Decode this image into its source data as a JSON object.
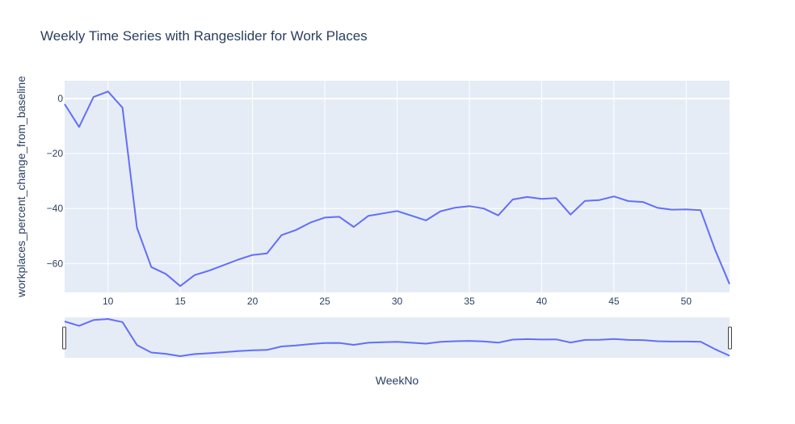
{
  "chart_data": {
    "type": "line",
    "title": "Weekly Time Series with Rangeslider for Work Places",
    "xlabel": "WeekNo",
    "ylabel": "workplaces_percent_change_from_baseline",
    "xlim": [
      7,
      53
    ],
    "ylim": [
      -70.5,
      6.5
    ],
    "x_ticks": [
      10,
      15,
      20,
      25,
      30,
      35,
      40,
      45,
      50
    ],
    "y_ticks": [
      0,
      -20,
      -40,
      -60
    ],
    "grid": true,
    "legend": "none",
    "rangeslider": true,
    "colors": {
      "line": "#636efa",
      "plot_bg": "#e5ecf6",
      "grid": "#ffffff",
      "text": "#2a3f5f"
    },
    "series": [
      {
        "x": [
          7,
          8,
          9,
          10,
          11,
          12,
          13,
          14,
          15,
          16,
          17,
          18,
          19,
          20,
          21,
          22,
          23,
          24,
          25,
          26,
          27,
          28,
          29,
          30,
          31,
          32,
          33,
          34,
          35,
          36,
          37,
          38,
          39,
          40,
          41,
          42,
          43,
          44,
          45,
          46,
          47,
          48,
          49,
          50,
          51,
          52,
          53
        ],
        "values": [
          -2,
          -10.3,
          0.6,
          2.6,
          -3.3,
          -47,
          -61.3,
          -63.8,
          -68.2,
          -64.2,
          -62.6,
          -60.6,
          -58.6,
          -56.9,
          -56.3,
          -49.7,
          -47.8,
          -45.1,
          -43.3,
          -43,
          -46.7,
          -42.7,
          -41.8,
          -40.9,
          -42.6,
          -44.3,
          -41,
          -39.7,
          -39.1,
          -40,
          -42.5,
          -36.7,
          -35.8,
          -36.5,
          -36.2,
          -42.2,
          -37.2,
          -36.9,
          -35.6,
          -37.3,
          -37.6,
          -39.7,
          -40.4,
          -40.3,
          -40.6,
          -55,
          -67.5
        ]
      }
    ]
  }
}
